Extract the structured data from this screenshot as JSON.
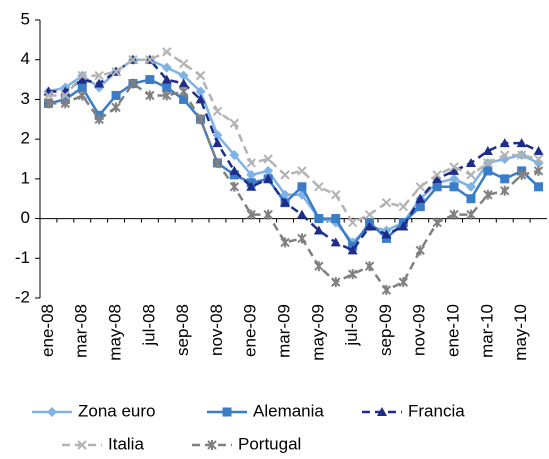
{
  "chart_data": {
    "type": "line",
    "categories": [
      "ene-08",
      null,
      "mar-08",
      null,
      "may-08",
      null,
      "jul-08",
      null,
      "sep-08",
      null,
      "nov-08",
      null,
      "ene-09",
      null,
      "mar-09",
      null,
      "may-09",
      null,
      "jul-09",
      null,
      "sep-09",
      null,
      "nov-09",
      null,
      "ene-10",
      null,
      "mar-10",
      null,
      "may-10",
      null
    ],
    "ylim": [
      -2,
      5
    ],
    "yticks": [
      -2,
      -1,
      0,
      1,
      2,
      3,
      4,
      5
    ],
    "series": [
      {
        "name": "Zona euro",
        "color": "#7fb2e5",
        "values": [
          3.2,
          3.3,
          3.6,
          3.3,
          3.7,
          4.0,
          4.0,
          3.8,
          3.6,
          3.2,
          2.1,
          1.6,
          1.1,
          1.2,
          0.6,
          0.6,
          0.0,
          -0.1,
          -0.6,
          -0.2,
          -0.3,
          -0.1,
          0.5,
          0.9,
          1.0,
          0.8,
          1.4,
          1.5,
          1.6,
          1.4
        ]
      },
      {
        "name": "Alemania",
        "color": "#3a7cc6",
        "values": [
          2.9,
          3.0,
          3.3,
          2.6,
          3.1,
          3.4,
          3.5,
          3.3,
          3.0,
          2.5,
          1.4,
          1.1,
          0.9,
          1.0,
          0.4,
          0.8,
          0.0,
          0.0,
          -0.7,
          -0.1,
          -0.5,
          -0.1,
          0.3,
          0.8,
          0.8,
          0.5,
          1.2,
          1.0,
          1.2,
          0.8
        ]
      },
      {
        "name": "Francia",
        "color": "#1f2d8a",
        "values": [
          3.2,
          3.2,
          3.5,
          3.4,
          3.7,
          4.0,
          4.0,
          3.5,
          3.4,
          3.0,
          1.9,
          1.2,
          0.8,
          1.0,
          0.4,
          0.1,
          -0.3,
          -0.6,
          -0.8,
          -0.2,
          -0.4,
          -0.2,
          0.5,
          1.0,
          1.2,
          1.4,
          1.7,
          1.9,
          1.9,
          1.7
        ]
      },
      {
        "name": "Italia",
        "color": "#b3b3b3",
        "values": [
          3.1,
          3.1,
          3.6,
          3.6,
          3.7,
          4.0,
          4.0,
          4.2,
          3.9,
          3.6,
          2.7,
          2.4,
          1.4,
          1.5,
          1.1,
          1.2,
          0.8,
          0.6,
          -0.1,
          0.1,
          0.4,
          0.3,
          0.8,
          1.1,
          1.3,
          1.1,
          1.4,
          1.6,
          1.6,
          1.5
        ]
      },
      {
        "name": "Portugal",
        "color": "#808080",
        "values": [
          2.9,
          2.9,
          3.1,
          2.5,
          2.8,
          3.4,
          3.1,
          3.1,
          3.2,
          2.5,
          1.4,
          0.8,
          0.1,
          0.1,
          -0.6,
          -0.5,
          -1.2,
          -1.6,
          -1.4,
          -1.2,
          -1.8,
          -1.6,
          -0.8,
          -0.1,
          0.1,
          0.1,
          0.6,
          0.7,
          1.1,
          1.2
        ]
      }
    ]
  }
}
